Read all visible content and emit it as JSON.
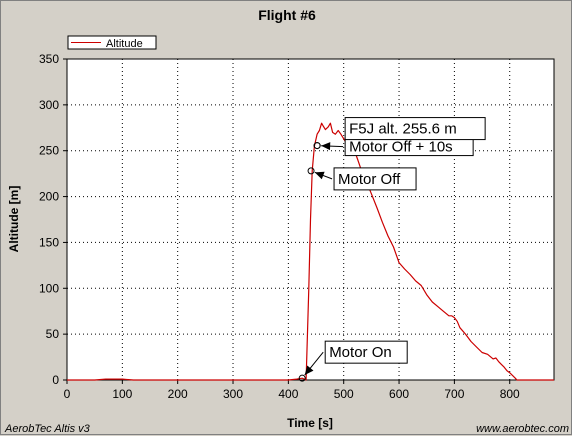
{
  "chart_data": {
    "type": "line",
    "title": "Flight #6",
    "xlabel": "Time [s]",
    "ylabel": "Altitude [m]",
    "xlim": [
      0,
      880
    ],
    "ylim": [
      0,
      350
    ],
    "x_ticks": [
      0,
      100,
      200,
      300,
      400,
      500,
      600,
      700,
      800
    ],
    "y_ticks": [
      0,
      50,
      100,
      150,
      200,
      250,
      300,
      350
    ],
    "grid": true,
    "legend_position": "top-left",
    "series": [
      {
        "name": "Altitude",
        "color": "#cc0000",
        "x": [
          0,
          50,
          70,
          80,
          100,
          120,
          150,
          200,
          250,
          300,
          350,
          400,
          415,
          425,
          432,
          437,
          440,
          443,
          447,
          452,
          456,
          460,
          463,
          467,
          472,
          476,
          480,
          485,
          490,
          495,
          500,
          505,
          510,
          515,
          520,
          525,
          530,
          540,
          550,
          560,
          570,
          580,
          590,
          600,
          610,
          620,
          630,
          640,
          650,
          660,
          670,
          680,
          690,
          695,
          700,
          705,
          710,
          720,
          730,
          740,
          750,
          760,
          770,
          775,
          780,
          785,
          790,
          795,
          800,
          805,
          810,
          813,
          820,
          850,
          880
        ],
        "y": [
          0,
          0,
          1,
          1,
          1,
          0,
          0,
          0,
          0,
          0,
          0,
          0,
          1,
          2,
          0,
          100,
          175,
          228,
          255,
          268,
          272,
          280,
          277,
          273,
          276,
          280,
          270,
          268,
          272,
          268,
          263,
          258,
          255,
          253,
          249,
          241,
          232,
          218,
          203,
          188,
          172,
          157,
          145,
          128,
          121,
          115,
          108,
          103,
          93,
          85,
          80,
          75,
          70,
          70,
          68,
          64,
          57,
          50,
          42,
          36,
          30,
          28,
          23,
          24,
          20,
          17,
          14,
          10,
          8,
          5,
          2,
          0,
          0,
          0,
          0
        ]
      }
    ],
    "annotations": [
      {
        "text": "F5J alt. 255.6 m",
        "x": 452,
        "y": 255.6
      },
      {
        "text": "Motor Off + 10s",
        "x": 452,
        "y": 255.6
      },
      {
        "text": "Motor Off",
        "x": 441,
        "y": 228
      },
      {
        "text": "Motor On",
        "x": 425,
        "y": 2
      }
    ]
  },
  "footer": {
    "left": "AerobTec Altis v3",
    "right": "www.aerobtec.com"
  }
}
